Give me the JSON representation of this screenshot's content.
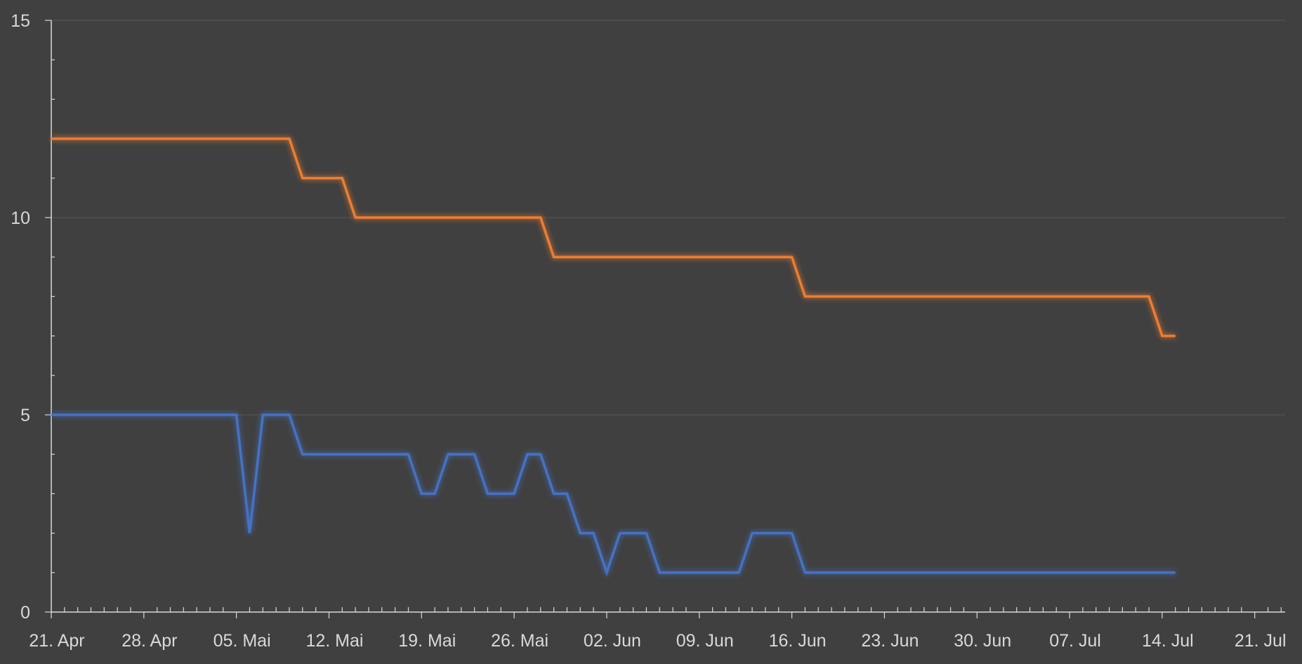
{
  "chart_data": {
    "type": "line",
    "title": "",
    "xlabel": "",
    "ylabel": "",
    "x_axis": {
      "type": "date",
      "min": "2024-04-21",
      "max": "2024-07-21",
      "tick_labels": [
        "21. Apr",
        "28. Apr",
        "05. Mai",
        "12. Mai",
        "19. Mai",
        "26. Mai",
        "02. Jun",
        "09. Jun",
        "16. Jun",
        "23. Jun",
        "30. Jun",
        "07. Jul",
        "14. Jul",
        "21. Jul"
      ]
    },
    "ylim": [
      0,
      15
    ],
    "y_tick_labels": [
      "0",
      "5",
      "10",
      "15"
    ],
    "grid": "horizontal",
    "legend": "none",
    "series": [
      {
        "color": "#ed7d31",
        "x": [
          "2024-04-21",
          "2024-05-09",
          "2024-05-10",
          "2024-05-13",
          "2024-05-14",
          "2024-05-28",
          "2024-05-29",
          "2024-06-16",
          "2024-06-17",
          "2024-07-13",
          "2024-07-14",
          "2024-07-15"
        ],
        "y": [
          12,
          12,
          11,
          11,
          10,
          10,
          9,
          9,
          8,
          8,
          7,
          7
        ]
      },
      {
        "color": "#4472c4",
        "x": [
          "2024-04-21",
          "2024-05-05",
          "2024-05-06",
          "2024-05-07",
          "2024-05-09",
          "2024-05-10",
          "2024-05-18",
          "2024-05-19",
          "2024-05-20",
          "2024-05-21",
          "2024-05-23",
          "2024-05-24",
          "2024-05-26",
          "2024-05-27",
          "2024-05-28",
          "2024-05-29",
          "2024-05-30",
          "2024-05-31",
          "2024-06-01",
          "2024-06-02",
          "2024-06-03",
          "2024-06-05",
          "2024-06-06",
          "2024-06-12",
          "2024-06-13",
          "2024-06-16",
          "2024-06-17",
          "2024-07-15"
        ],
        "y": [
          5,
          5,
          2,
          5,
          5,
          4,
          4,
          3,
          3,
          4,
          4,
          3,
          3,
          4,
          4,
          3,
          3,
          2,
          2,
          1,
          2,
          2,
          1,
          1,
          2,
          2,
          1,
          1
        ]
      }
    ]
  }
}
